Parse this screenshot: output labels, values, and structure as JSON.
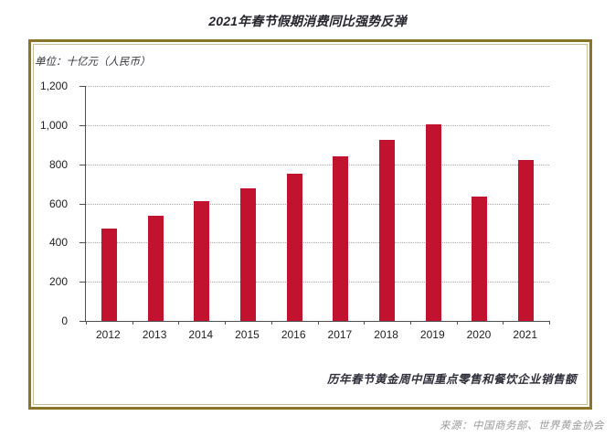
{
  "page": {
    "title": "2021年春节假期消费同比强势反弹",
    "source": "来源：中国商务部、世界黄金协会"
  },
  "chart": {
    "unit_label": "单位：十亿元（人民币）",
    "caption": "历年春节黄金周中国重点零售和餐饮企业销售额"
  },
  "chart_data": {
    "type": "bar",
    "title": "2021年春节假期消费同比强势反弹",
    "subtitle_caption": "历年春节黄金周中国重点零售和餐饮企业销售额",
    "unit": "单位：十亿元（人民币）",
    "source": "来源：中国商务部、世界黄金协会",
    "categories": [
      "2012",
      "2013",
      "2014",
      "2015",
      "2016",
      "2017",
      "2018",
      "2019",
      "2020",
      "2021"
    ],
    "values": [
      470,
      539,
      611,
      678,
      754,
      840,
      926,
      1005,
      637,
      821
    ],
    "xlabel": "",
    "ylabel": "十亿元（人民币）",
    "ylim": [
      0,
      1200
    ],
    "yticks": [
      {
        "value": 0,
        "label": "0"
      },
      {
        "value": 200,
        "label": "200"
      },
      {
        "value": 400,
        "label": "400"
      },
      {
        "value": 600,
        "label": "600"
      },
      {
        "value": 800,
        "label": "800"
      },
      {
        "value": 1000,
        "label": "1,000"
      },
      {
        "value": 1200,
        "label": "1,200"
      }
    ],
    "grid": "horizontal-dotted",
    "legend": "none",
    "bar_color": "#c1122f",
    "axis_color": "#4f4f4f",
    "border_color": "#8a7426"
  }
}
